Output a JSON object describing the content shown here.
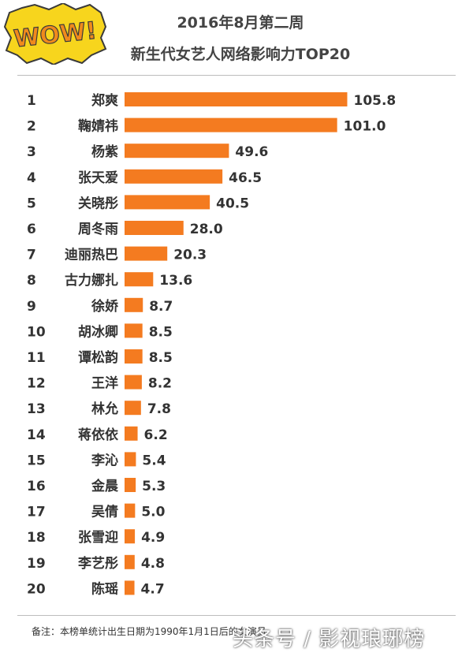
{
  "header": {
    "logo_text": "WOW!",
    "title_line1": "2016年8月第二周",
    "title_line2": "新生代女艺人网络影响力TOP20"
  },
  "footnote": "备注：本榜单统计出生日期为1990年1月1日后的女演员",
  "watermark": "头条号 / 影视琅琊榜",
  "colors": {
    "bar": "#f47b20",
    "logo_yellow": "#f7d51d",
    "logo_text": "#f08a1c"
  },
  "chart_data": {
    "type": "bar",
    "orientation": "horizontal",
    "title": "新生代女艺人网络影响力TOP20",
    "xlabel": "",
    "ylabel": "",
    "grid": false,
    "legend": "none",
    "ranks": [
      "1",
      "2",
      "3",
      "4",
      "5",
      "6",
      "7",
      "8",
      "9",
      "10",
      "11",
      "12",
      "13",
      "14",
      "15",
      "16",
      "17",
      "18",
      "19",
      "20"
    ],
    "categories": [
      "郑爽",
      "鞠婧祎",
      "杨紫",
      "张天爱",
      "关晓彤",
      "周冬雨",
      "迪丽热巴",
      "古力娜扎",
      "徐娇",
      "胡冰卿",
      "谭松韵",
      "王洋",
      "林允",
      "蒋依依",
      "李沁",
      "金晨",
      "吴倩",
      "张雪迎",
      "李艺彤",
      "陈瑶"
    ],
    "values": [
      105.8,
      101.0,
      49.6,
      46.5,
      40.5,
      28.0,
      20.3,
      13.6,
      8.7,
      8.5,
      8.5,
      8.2,
      7.8,
      6.2,
      5.4,
      5.3,
      5.0,
      4.9,
      4.8,
      4.7
    ],
    "value_labels": [
      "105.8",
      "101.0",
      "49.6",
      "46.5",
      "40.5",
      "28.0",
      "20.3",
      "13.6",
      "8.7",
      "8.5",
      "8.5",
      "8.2",
      "7.8",
      "6.2",
      "5.4",
      "5.3",
      "5.0",
      "4.9",
      "4.8",
      "4.7"
    ]
  }
}
